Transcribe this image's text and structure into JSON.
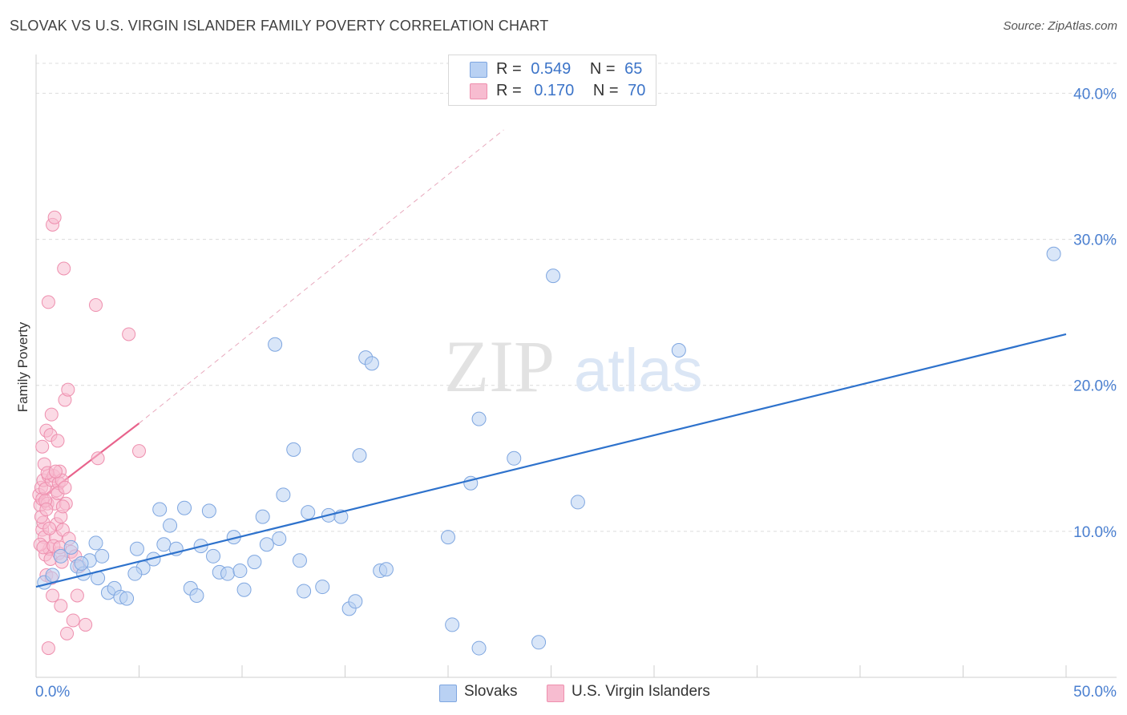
{
  "header": {
    "title": "SLOVAK VS U.S. VIRGIN ISLANDER FAMILY POVERTY CORRELATION CHART",
    "source": "Source: ZipAtlas.com"
  },
  "legend": {
    "series1": {
      "r_label": "R =",
      "r_value": "0.549",
      "n_label": "N =",
      "n_value": "65"
    },
    "series2": {
      "r_label": "R =",
      "r_value": "0.170",
      "n_label": "N =",
      "n_value": "70"
    }
  },
  "bottom_legend": {
    "series1": "Slovaks",
    "series2": "U.S. Virgin Islanders"
  },
  "watermark": {
    "part1": "ZIP",
    "part2": "atlas"
  },
  "colors": {
    "blue_fill": "#b9d1f3",
    "blue_stroke": "#7ea6e0",
    "blue_line": "#2e72cc",
    "pink_fill": "#f7bcd0",
    "pink_stroke": "#ee8fae",
    "pink_line": "#e8638c",
    "grid": "#dcdcdc",
    "axis_text": "#4a7fd0"
  },
  "chart_data": {
    "type": "scatter",
    "title": "SLOVAK VS U.S. VIRGIN ISLANDER FAMILY POVERTY CORRELATION CHART",
    "xlabel": "",
    "ylabel": "Family Poverty",
    "xlim": [
      0,
      50
    ],
    "ylim": [
      0,
      42
    ],
    "x_tick_labels": [
      "0.0%",
      "50.0%"
    ],
    "y_ticks": [
      10,
      20,
      30,
      40
    ],
    "y_tick_labels": [
      "10.0%",
      "20.0%",
      "30.0%",
      "40.0%"
    ],
    "grid": true,
    "series": [
      {
        "name": "Slovaks",
        "r": 0.549,
        "n": 65,
        "trend": {
          "x": [
            0,
            50
          ],
          "y": [
            6.2,
            23.5
          ]
        },
        "points": [
          [
            0.4,
            6.5
          ],
          [
            0.8,
            7.0
          ],
          [
            1.2,
            8.3
          ],
          [
            1.7,
            8.9
          ],
          [
            2.0,
            7.6
          ],
          [
            2.3,
            7.1
          ],
          [
            2.6,
            8.0
          ],
          [
            2.9,
            9.2
          ],
          [
            3.2,
            8.3
          ],
          [
            3.5,
            5.8
          ],
          [
            3.8,
            6.1
          ],
          [
            4.1,
            5.5
          ],
          [
            4.4,
            5.4
          ],
          [
            4.9,
            8.8
          ],
          [
            5.2,
            7.5
          ],
          [
            5.7,
            8.1
          ],
          [
            4.8,
            7.1
          ],
          [
            6.0,
            11.5
          ],
          [
            6.2,
            9.1
          ],
          [
            6.5,
            10.4
          ],
          [
            6.8,
            8.8
          ],
          [
            7.2,
            11.6
          ],
          [
            7.5,
            6.1
          ],
          [
            7.8,
            5.6
          ],
          [
            8.0,
            9.0
          ],
          [
            8.4,
            11.4
          ],
          [
            8.6,
            8.3
          ],
          [
            8.9,
            7.2
          ],
          [
            9.3,
            7.1
          ],
          [
            9.6,
            9.6
          ],
          [
            9.9,
            7.3
          ],
          [
            10.1,
            6.0
          ],
          [
            10.6,
            7.9
          ],
          [
            11.0,
            11.0
          ],
          [
            11.2,
            9.1
          ],
          [
            11.6,
            22.8
          ],
          [
            11.8,
            9.5
          ],
          [
            12.0,
            12.5
          ],
          [
            12.5,
            15.6
          ],
          [
            12.8,
            8.0
          ],
          [
            13.0,
            5.9
          ],
          [
            13.2,
            11.3
          ],
          [
            13.9,
            6.2
          ],
          [
            14.2,
            11.1
          ],
          [
            14.8,
            11.0
          ],
          [
            15.2,
            4.7
          ],
          [
            15.5,
            5.2
          ],
          [
            15.7,
            15.2
          ],
          [
            16.0,
            21.9
          ],
          [
            16.3,
            21.5
          ],
          [
            16.7,
            7.3
          ],
          [
            17.0,
            7.4
          ],
          [
            20.0,
            9.6
          ],
          [
            20.2,
            3.6
          ],
          [
            21.1,
            13.3
          ],
          [
            21.5,
            2.0
          ],
          [
            21.5,
            17.7
          ],
          [
            23.2,
            15.0
          ],
          [
            24.4,
            2.4
          ],
          [
            25.1,
            27.5
          ],
          [
            26.3,
            12.0
          ],
          [
            31.2,
            22.4
          ],
          [
            49.4,
            29.0
          ],
          [
            2.2,
            7.8
          ],
          [
            3.0,
            6.8
          ]
        ]
      },
      {
        "name": "U.S. Virgin Islanders",
        "r": 0.17,
        "n": 70,
        "trend": {
          "x": [
            0,
            5.0
          ],
          "y": [
            12.0,
            17.4
          ]
        },
        "trend_extension": {
          "x": [
            5.0,
            22.7
          ],
          "y": [
            17.4,
            37.5
          ]
        },
        "points": [
          [
            0.15,
            12.5
          ],
          [
            0.2,
            11.8
          ],
          [
            0.25,
            13.0
          ],
          [
            0.3,
            12.2
          ],
          [
            0.3,
            10.1
          ],
          [
            0.35,
            10.6
          ],
          [
            0.35,
            13.5
          ],
          [
            0.4,
            14.6
          ],
          [
            0.4,
            9.6
          ],
          [
            0.45,
            8.4
          ],
          [
            0.45,
            12.9
          ],
          [
            0.5,
            7.0
          ],
          [
            0.5,
            16.9
          ],
          [
            0.55,
            11.9
          ],
          [
            0.6,
            25.7
          ],
          [
            0.6,
            13.8
          ],
          [
            0.65,
            8.8
          ],
          [
            0.7,
            16.6
          ],
          [
            0.7,
            8.1
          ],
          [
            0.75,
            18.0
          ],
          [
            0.75,
            13.5
          ],
          [
            0.8,
            5.6
          ],
          [
            0.8,
            31.0
          ],
          [
            0.85,
            13.8
          ],
          [
            0.9,
            11.9
          ],
          [
            0.9,
            31.5
          ],
          [
            0.95,
            9.6
          ],
          [
            1.0,
            12.8
          ],
          [
            1.0,
            10.5
          ],
          [
            1.05,
            16.2
          ],
          [
            1.1,
            13.3
          ],
          [
            1.1,
            8.5
          ],
          [
            1.15,
            14.1
          ],
          [
            1.2,
            4.9
          ],
          [
            1.2,
            11.0
          ],
          [
            1.25,
            13.5
          ],
          [
            1.3,
            10.1
          ],
          [
            1.35,
            28.0
          ],
          [
            1.4,
            19.0
          ],
          [
            1.45,
            11.9
          ],
          [
            1.5,
            3.0
          ],
          [
            1.55,
            19.7
          ],
          [
            1.6,
            9.5
          ],
          [
            1.7,
            8.6
          ],
          [
            1.8,
            3.9
          ],
          [
            2.0,
            5.6
          ],
          [
            2.1,
            7.6
          ],
          [
            2.4,
            3.6
          ],
          [
            2.9,
            25.5
          ],
          [
            3.0,
            15.0
          ],
          [
            4.5,
            23.5
          ],
          [
            5.0,
            15.5
          ],
          [
            0.2,
            9.1
          ],
          [
            0.25,
            11.0
          ],
          [
            0.35,
            8.9
          ],
          [
            0.45,
            12.1
          ],
          [
            0.55,
            14.0
          ],
          [
            0.65,
            10.2
          ],
          [
            0.75,
            6.8
          ],
          [
            0.85,
            9.0
          ],
          [
            0.95,
            14.1
          ],
          [
            1.05,
            12.6
          ],
          [
            1.15,
            8.9
          ],
          [
            1.25,
            7.9
          ],
          [
            1.4,
            13.0
          ],
          [
            0.6,
            2.0
          ],
          [
            1.9,
            8.3
          ],
          [
            0.3,
            15.8
          ],
          [
            0.5,
            11.5
          ],
          [
            1.3,
            11.7
          ]
        ]
      }
    ]
  }
}
